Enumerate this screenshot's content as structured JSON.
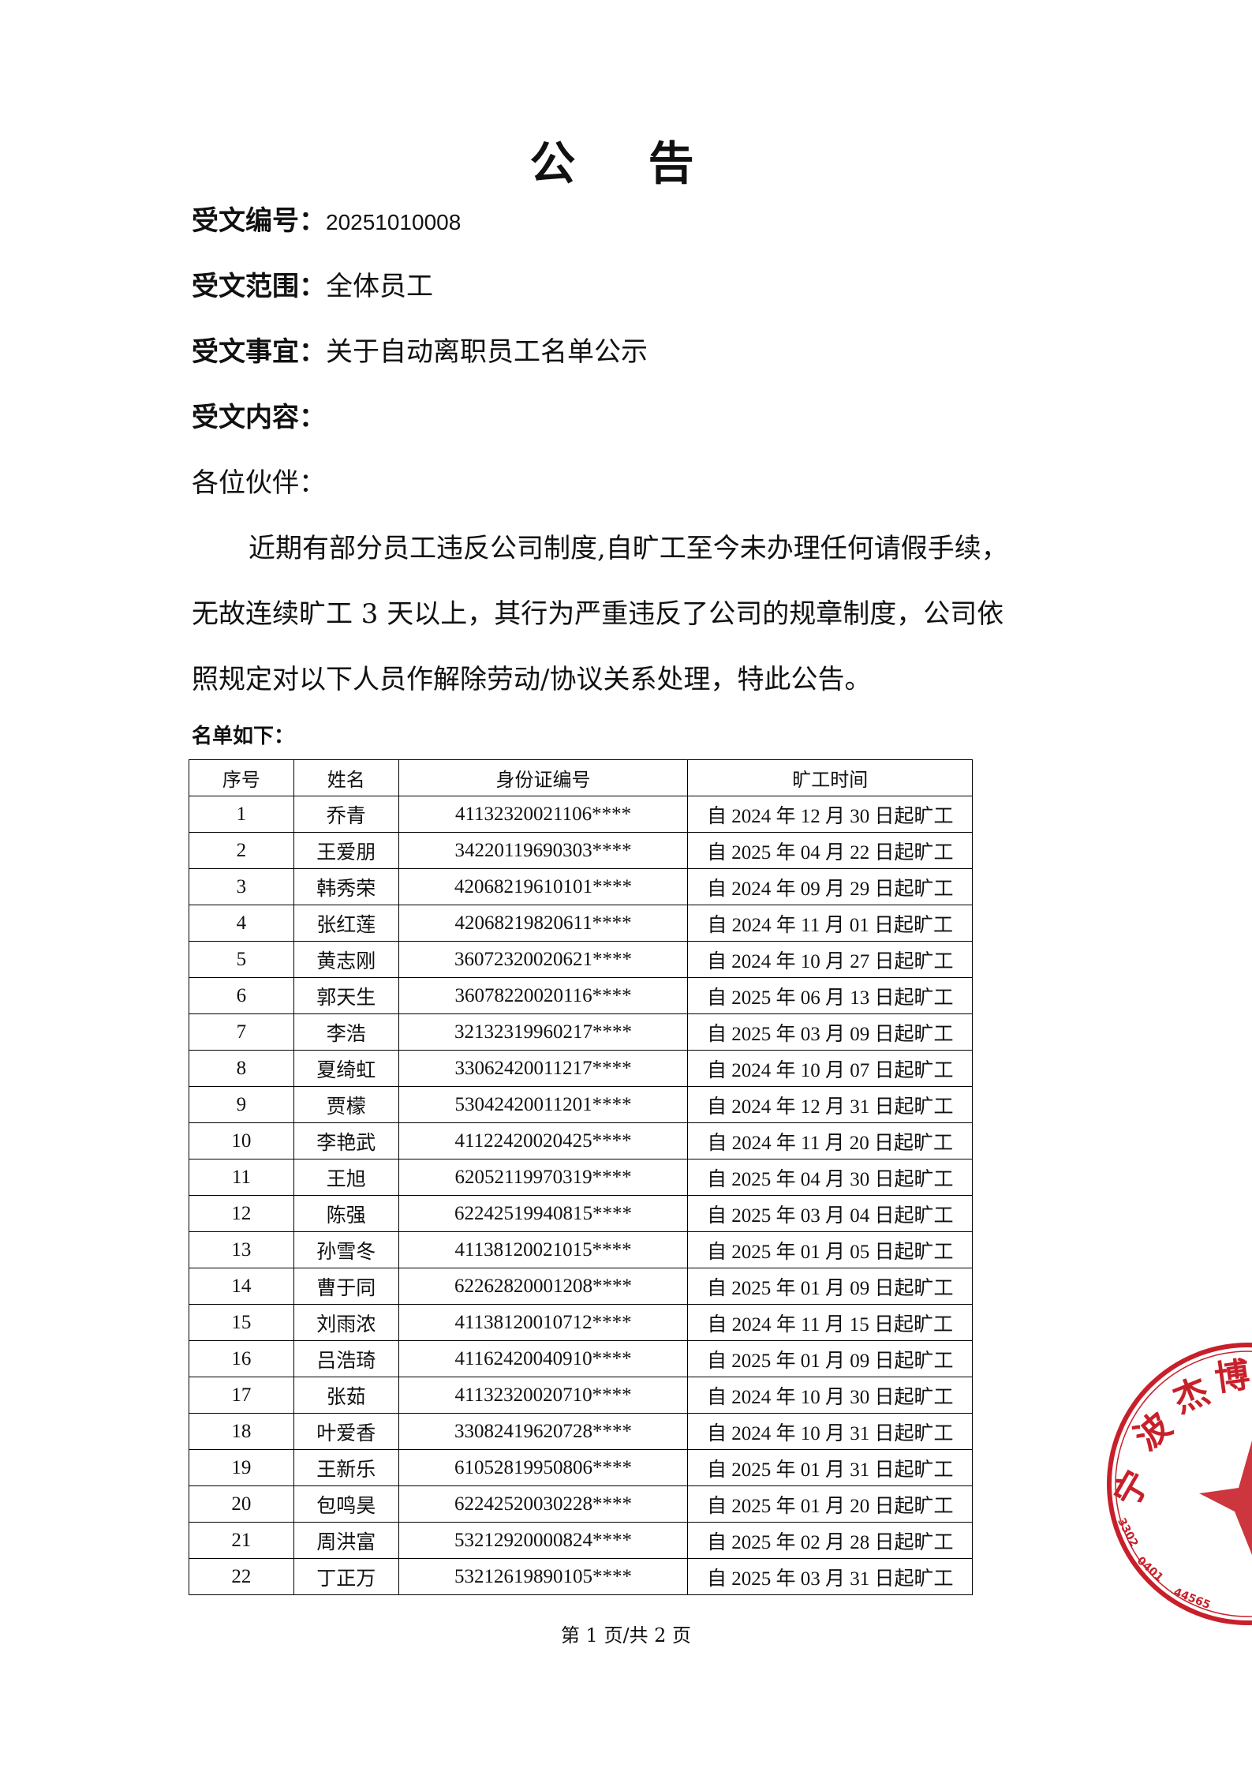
{
  "title": "公 告",
  "fields": [
    {
      "label": "受文编号：",
      "value": "20251010008"
    },
    {
      "label": "受文范围：",
      "value": "全体员工"
    },
    {
      "label": "受文事宜：",
      "value": "关于自动离职员工名单公示"
    },
    {
      "label": "受文内容：",
      "value": ""
    }
  ],
  "greeting": "各位伙伴：",
  "body_lines": [
    "近期有部分员工违反公司制度,自旷工至今未办理任何请假手续，",
    "无故连续旷工 3 天以上，其行为严重违反了公司的规章制度，公司依",
    "照规定对以下人员作解除劳动/协议关系处理，特此公告。"
  ],
  "list_title": "名单如下：",
  "table": {
    "headers": [
      "序号",
      "姓名",
      "身份证编号",
      "旷工时间"
    ],
    "rows": [
      [
        "1",
        "乔青",
        "41132320021106****",
        "自 2024 年 12 月 30 日起旷工"
      ],
      [
        "2",
        "王爱朋",
        "34220119690303****",
        "自 2025 年 04 月 22 日起旷工"
      ],
      [
        "3",
        "韩秀荣",
        "42068219610101****",
        "自 2024 年 09 月 29 日起旷工"
      ],
      [
        "4",
        "张红莲",
        "42068219820611****",
        "自 2024 年 11 月 01 日起旷工"
      ],
      [
        "5",
        "黄志刚",
        "36072320020621****",
        "自 2024 年 10 月 27 日起旷工"
      ],
      [
        "6",
        "郭天生",
        "36078220020116****",
        "自 2025 年 06 月 13 日起旷工"
      ],
      [
        "7",
        "李浩",
        "32132319960217****",
        "自 2025 年 03 月 09 日起旷工"
      ],
      [
        "8",
        "夏绮虹",
        "33062420011217****",
        "自 2024 年 10 月 07 日起旷工"
      ],
      [
        "9",
        "贾檬",
        "53042420011201****",
        "自 2024 年 12 月 31 日起旷工"
      ],
      [
        "10",
        "李艳武",
        "41122420020425****",
        "自 2024 年 11 月 20 日起旷工"
      ],
      [
        "11",
        "王旭",
        "62052119970319****",
        "自 2025 年 04 月 30 日起旷工"
      ],
      [
        "12",
        "陈强",
        "62242519940815****",
        "自 2025 年 03 月 04 日起旷工"
      ],
      [
        "13",
        "孙雪冬",
        "41138120021015****",
        "自 2025 年 01 月 05 日起旷工"
      ],
      [
        "14",
        "曹于同",
        "62262820001208****",
        "自 2025 年 01 月 09 日起旷工"
      ],
      [
        "15",
        "刘雨浓",
        "41138120010712****",
        "自 2024 年 11 月 15 日起旷工"
      ],
      [
        "16",
        "吕浩琦",
        "41162420040910****",
        "自 2025 年 01 月 09 日起旷工"
      ],
      [
        "17",
        "张茹",
        "41132320020710****",
        "自 2024 年 10 月 30 日起旷工"
      ],
      [
        "18",
        "叶爱香",
        "33082419620728****",
        "自 2024 年 10 月 31 日起旷工"
      ],
      [
        "19",
        "王新乐",
        "61052819950806****",
        "自 2025 年 01 月 31 日起旷工"
      ],
      [
        "20",
        "包鸣昊",
        "62242520030228****",
        "自 2025 年 01 月 20 日起旷工"
      ],
      [
        "21",
        "周洪富",
        "53212920000824****",
        "自 2025 年 02 月 28 日起旷工"
      ],
      [
        "22",
        "丁正万",
        "53212619890105****",
        "自 2025 年 03 月 31 日起旷工"
      ]
    ]
  },
  "footer": "第 1 页/共 2 页",
  "stamp": {
    "text": "宁波杰博",
    "code": "3302040144565",
    "color": "#c8202a"
  }
}
